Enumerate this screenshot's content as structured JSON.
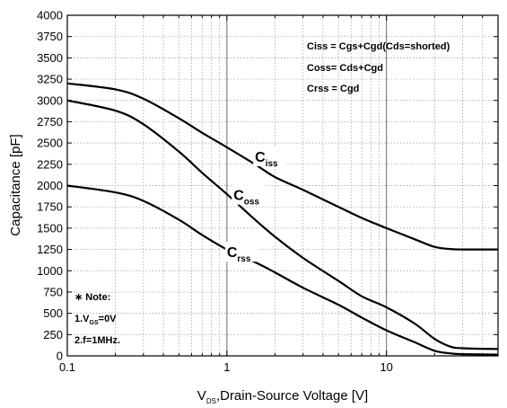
{
  "chart_data": {
    "type": "line",
    "title": "",
    "xlabel": {
      "main": "V",
      "sub": "DS",
      "rest": ",Drain-Source Voltage [V]"
    },
    "ylabel": "Capacitance [pF]",
    "xscale": "log",
    "xlim": [
      0.1,
      50
    ],
    "ylim": [
      0,
      4000
    ],
    "grid": true,
    "x_ticks": [
      {
        "value": 0.1,
        "label": "0.1"
      },
      {
        "value": 1,
        "label": "1"
      },
      {
        "value": 10,
        "label": "10"
      }
    ],
    "y_ticks": [
      {
        "value": 0,
        "label": "0"
      },
      {
        "value": 250,
        "label": "250"
      },
      {
        "value": 500,
        "label": "500"
      },
      {
        "value": 750,
        "label": "750"
      },
      {
        "value": 1000,
        "label": "1000"
      },
      {
        "value": 1250,
        "label": "1250"
      },
      {
        "value": 1500,
        "label": "1500"
      },
      {
        "value": 1750,
        "label": "1750"
      },
      {
        "value": 2000,
        "label": "2000"
      },
      {
        "value": 2250,
        "label": "2250"
      },
      {
        "value": 2500,
        "label": "2500"
      },
      {
        "value": 2750,
        "label": "2750"
      },
      {
        "value": 3000,
        "label": "3000"
      },
      {
        "value": 3250,
        "label": "3250"
      },
      {
        "value": 3500,
        "label": "3500"
      },
      {
        "value": 3750,
        "label": "3750"
      },
      {
        "value": 4000,
        "label": "4000"
      }
    ],
    "series": [
      {
        "label_main": "C",
        "label_sub": "iss",
        "label_at": [
          1.5,
          2300
        ],
        "points": [
          [
            0.1,
            3200
          ],
          [
            0.2,
            3130
          ],
          [
            0.3,
            3020
          ],
          [
            0.5,
            2790
          ],
          [
            0.7,
            2620
          ],
          [
            1,
            2450
          ],
          [
            1.5,
            2250
          ],
          [
            2,
            2100
          ],
          [
            3,
            1950
          ],
          [
            5,
            1750
          ],
          [
            7,
            1620
          ],
          [
            10,
            1500
          ],
          [
            15,
            1370
          ],
          [
            20,
            1280
          ],
          [
            25,
            1255
          ],
          [
            30,
            1250
          ],
          [
            50,
            1250
          ]
        ]
      },
      {
        "label_main": "C",
        "label_sub": "oss",
        "label_at": [
          1.1,
          1850
        ],
        "points": [
          [
            0.1,
            3000
          ],
          [
            0.2,
            2880
          ],
          [
            0.3,
            2720
          ],
          [
            0.5,
            2400
          ],
          [
            0.7,
            2150
          ],
          [
            1,
            1900
          ],
          [
            1.5,
            1600
          ],
          [
            2,
            1400
          ],
          [
            3,
            1150
          ],
          [
            5,
            880
          ],
          [
            7,
            700
          ],
          [
            10,
            570
          ],
          [
            15,
            380
          ],
          [
            20,
            200
          ],
          [
            25,
            110
          ],
          [
            30,
            90
          ],
          [
            50,
            80
          ]
        ]
      },
      {
        "label_main": "C",
        "label_sub": "rss",
        "label_at": [
          1,
          1180
        ],
        "points": [
          [
            0.1,
            2000
          ],
          [
            0.2,
            1920
          ],
          [
            0.3,
            1820
          ],
          [
            0.5,
            1600
          ],
          [
            0.7,
            1420
          ],
          [
            1,
            1250
          ],
          [
            1.5,
            1100
          ],
          [
            2,
            980
          ],
          [
            3,
            800
          ],
          [
            5,
            600
          ],
          [
            7,
            450
          ],
          [
            10,
            300
          ],
          [
            15,
            160
          ],
          [
            20,
            60
          ],
          [
            25,
            30
          ],
          [
            30,
            20
          ],
          [
            50,
            15
          ]
        ]
      }
    ],
    "legend": {
      "position": "top-right",
      "entries": [
        "Ciss = Cgs+Cgd(Cds=shorted)",
        "Coss= Cds+Cgd",
        "Crss = Cgd"
      ]
    },
    "note": {
      "position": "bottom-left",
      "title": "∗ Note:",
      "line1": {
        "main": "1.V",
        "sub": "GS",
        "rest": "=0V"
      },
      "line2": "2.f=1MHz."
    }
  }
}
